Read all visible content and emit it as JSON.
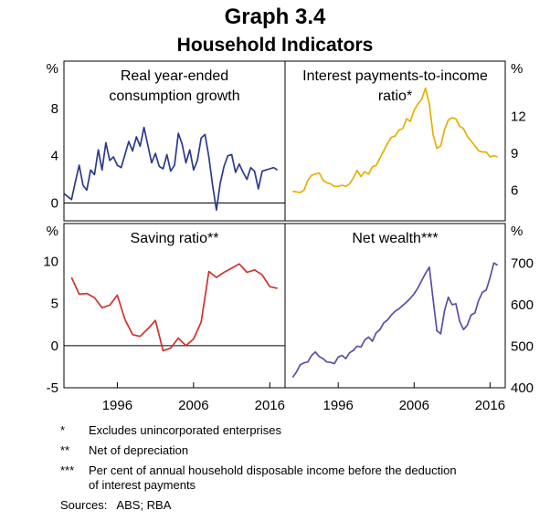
{
  "figure": {
    "title": "Graph 3.4",
    "subtitle": "Household Indicators"
  },
  "notes": [
    {
      "marker": "*",
      "text": "Excludes unincorporated enterprises"
    },
    {
      "marker": "**",
      "text": "Net of depreciation"
    },
    {
      "marker": "***",
      "text": "Per cent of annual household disposable income before the deduction",
      "text2": "of interest payments"
    }
  ],
  "sources": "Sources:   ABS; RBA",
  "chart_data": [
    {
      "type": "line",
      "title_lines": [
        "Real year-ended",
        "consumption growth"
      ],
      "unit_left": "%",
      "ylim": [
        -1.5,
        12
      ],
      "yticks": [
        0,
        4,
        8
      ],
      "xlim": [
        1989,
        2018
      ],
      "color": "#2c3a8c",
      "zero_line": true,
      "series": [
        {
          "x": [
            1989,
            1990,
            1990.5,
            1991,
            1991.5,
            1992,
            1992.5,
            1993,
            1993.5,
            1994,
            1994.5,
            1995,
            1995.5,
            1996,
            1996.5,
            1997,
            1997.5,
            1998,
            1998.5,
            1999,
            1999.5,
            2000,
            2000.5,
            2001,
            2001.5,
            2002,
            2002.5,
            2003,
            2003.5,
            2004,
            2004.5,
            2005,
            2005.5,
            2006,
            2006.5,
            2007,
            2007.5,
            2008,
            2008.5,
            2009,
            2009.5,
            2010,
            2010.5,
            2011,
            2011.5,
            2012,
            2012.5,
            2013,
            2013.5,
            2014,
            2014.5,
            2015,
            2015.5,
            2016,
            2016.5,
            2017
          ],
          "y": [
            0.8,
            0.3,
            1.8,
            3.2,
            1.5,
            1.1,
            2.8,
            2.4,
            4.5,
            2.8,
            5.1,
            3.6,
            3.9,
            3.2,
            3.0,
            4.1,
            5.2,
            4.4,
            5.6,
            4.8,
            6.4,
            4.9,
            3.4,
            4.2,
            3.1,
            2.9,
            4.1,
            2.7,
            3.2,
            5.9,
            5.0,
            3.4,
            4.5,
            2.8,
            3.6,
            5.5,
            5.8,
            3.9,
            1.5,
            -0.6,
            1.7,
            3.1,
            4.0,
            4.1,
            2.6,
            3.3,
            2.6,
            2.0,
            3.0,
            2.7,
            1.2,
            2.7,
            2.8,
            2.9,
            3.0,
            2.8
          ]
        }
      ]
    },
    {
      "type": "line",
      "title_lines": [
        "Interest payments-to-income",
        "ratio*"
      ],
      "unit_right": "%",
      "ylim": [
        3.5,
        16.5
      ],
      "yticks": [
        6,
        9,
        12
      ],
      "xlim": [
        1989,
        2018
      ],
      "color": "#e6b000",
      "zero_line": false,
      "series": [
        {
          "x": [
            1990,
            1991,
            1991.5,
            1992,
            1992.5,
            1993,
            1993.5,
            1994,
            1994.5,
            1995,
            1995.5,
            1996,
            1996.5,
            1997,
            1997.5,
            1998,
            1998.5,
            1999,
            1999.5,
            2000,
            2000.5,
            2001,
            2001.5,
            2002,
            2002.5,
            2003,
            2003.5,
            2004,
            2004.5,
            2005,
            2005.5,
            2006,
            2006.5,
            2007,
            2007.5,
            2008,
            2008.5,
            2009,
            2009.5,
            2010,
            2010.5,
            2011,
            2011.5,
            2012,
            2012.5,
            2013,
            2013.5,
            2014,
            2014.5,
            2015,
            2015.5,
            2016,
            2016.5,
            2017
          ],
          "y": [
            5.9,
            5.8,
            6.0,
            6.8,
            7.2,
            7.3,
            7.4,
            6.8,
            6.6,
            6.5,
            6.3,
            6.3,
            6.4,
            6.3,
            6.5,
            7.0,
            7.6,
            7.1,
            7.5,
            7.3,
            7.9,
            8.0,
            8.6,
            9.2,
            9.8,
            10.3,
            10.4,
            10.9,
            11.0,
            11.8,
            11.6,
            12.5,
            13.0,
            13.4,
            14.3,
            13.0,
            10.5,
            9.4,
            9.6,
            10.9,
            11.7,
            11.9,
            11.8,
            11.2,
            11.0,
            10.4,
            10.0,
            9.6,
            9.2,
            9.1,
            9.1,
            8.7,
            8.8,
            8.7
          ]
        }
      ]
    },
    {
      "type": "line",
      "title_lines": [
        "Saving ratio**"
      ],
      "unit_left": "%",
      "ylim": [
        -5,
        14.5
      ],
      "yticks": [
        -5,
        0,
        5,
        10
      ],
      "xlim": [
        1989,
        2018
      ],
      "color": "#d0312d",
      "zero_line": true,
      "series": [
        {
          "x": [
            1990,
            1991,
            1992,
            1993,
            1994,
            1995,
            1996,
            1997,
            1998,
            1999,
            2000,
            2001,
            2002,
            2003,
            2004,
            2005,
            2006,
            2007,
            2008,
            2009,
            2010,
            2011,
            2012,
            2013,
            2014,
            2015,
            2016,
            2017
          ],
          "y": [
            8.1,
            6.1,
            6.2,
            5.7,
            4.5,
            4.8,
            6.0,
            3.1,
            1.3,
            1.1,
            2.0,
            3.0,
            -0.6,
            -0.3,
            0.9,
            0.0,
            0.8,
            2.8,
            8.8,
            8.1,
            8.7,
            9.2,
            9.7,
            8.7,
            9.0,
            8.4,
            7.0,
            6.8
          ]
        }
      ]
    },
    {
      "type": "line",
      "title_lines": [
        "Net wealth***"
      ],
      "unit_right": "%",
      "ylim": [
        400,
        795
      ],
      "yticks": [
        400,
        500,
        600,
        700
      ],
      "xlim": [
        1989,
        2018
      ],
      "color": "#5b4ea6",
      "zero_line": false,
      "series": [
        {
          "x": [
            1990,
            1990.5,
            1991,
            1991.5,
            1992,
            1992.5,
            1993,
            1993.5,
            1994,
            1994.5,
            1995,
            1995.5,
            1996,
            1996.5,
            1997,
            1997.5,
            1998,
            1998.5,
            1999,
            1999.5,
            2000,
            2000.5,
            2001,
            2001.5,
            2002,
            2002.5,
            2003,
            2003.5,
            2004,
            2004.5,
            2005,
            2005.5,
            2006,
            2006.5,
            2007,
            2007.5,
            2008,
            2008.5,
            2009,
            2009.5,
            2010,
            2010.5,
            2011,
            2011.5,
            2012,
            2012.5,
            2013,
            2013.5,
            2014,
            2014.5,
            2015,
            2015.5,
            2016,
            2016.5,
            2017
          ],
          "y": [
            425,
            438,
            455,
            460,
            462,
            478,
            486,
            475,
            470,
            462,
            461,
            458,
            474,
            478,
            470,
            484,
            490,
            500,
            498,
            515,
            522,
            512,
            532,
            540,
            556,
            563,
            575,
            584,
            590,
            598,
            606,
            615,
            626,
            640,
            658,
            675,
            690,
            612,
            537,
            530,
            585,
            618,
            600,
            602,
            560,
            540,
            550,
            575,
            580,
            610,
            630,
            635,
            665,
            700,
            695
          ]
        }
      ]
    }
  ],
  "x_axis": {
    "ticks": [
      1996,
      2006,
      2016
    ]
  }
}
